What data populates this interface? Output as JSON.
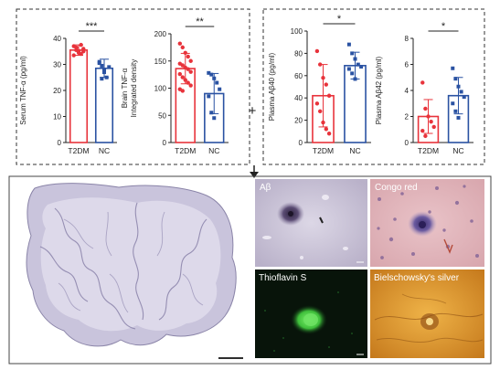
{
  "colors": {
    "t2dm": "#e8333b",
    "nc": "#2a52a2",
    "axis": "#222222",
    "frame": "#333333"
  },
  "charts": [
    {
      "type": "bar",
      "ylabel": "Serum TNF-α (pg/ml)",
      "ylabel_lines": [
        "Serum TNF-α (pg/ml)"
      ],
      "ylim": [
        0,
        40
      ],
      "yticks": [
        "0",
        "10",
        "20",
        "30",
        "40"
      ],
      "categories": [
        "T2DM",
        "NC"
      ],
      "values": [
        35.5,
        28.5
      ],
      "errors": [
        2.0,
        3.5
      ],
      "points": [
        [
          37,
          36.5,
          35.2,
          34,
          36,
          33.5,
          35.5,
          34.5,
          37.5,
          35
        ],
        [
          31,
          29.5,
          27,
          25,
          29,
          30.5,
          24.5,
          28
        ]
      ],
      "significance": "***"
    },
    {
      "type": "bar",
      "ylabel": "Brain TNF-α Integrated density",
      "ylabel_lines": [
        "Brain TNF-α",
        "Integrated density"
      ],
      "ylim": [
        0,
        200
      ],
      "yticks": [
        "0",
        "50",
        "100",
        "150",
        "200"
      ],
      "categories": [
        "T2DM",
        "NC"
      ],
      "values": [
        136,
        90
      ],
      "errors": [
        28,
        37
      ],
      "points": [
        [
          182,
          175,
          165,
          158,
          150,
          145,
          142,
          138,
          135,
          130,
          126,
          120,
          115,
          110,
          105,
          98,
          95
        ],
        [
          128,
          125,
          118,
          110,
          98,
          85,
          55,
          45
        ]
      ],
      "significance": "**"
    },
    {
      "type": "bar",
      "ylabel": "Plasma Aβ40 (pg/ml)",
      "ylabel_lines": [
        "Plasma Aβ40 (pg/ml)"
      ],
      "ylim": [
        0,
        100
      ],
      "yticks": [
        "0",
        "20",
        "40",
        "60",
        "80",
        "100"
      ],
      "categories": [
        "T2DM",
        "NC"
      ],
      "values": [
        42,
        69
      ],
      "errors": [
        28,
        12
      ],
      "points": [
        [
          82,
          70,
          58,
          52,
          42,
          35,
          28,
          18,
          12,
          8
        ],
        [
          88,
          80,
          75,
          70,
          68,
          66,
          62,
          57
        ]
      ],
      "significance": "*"
    },
    {
      "type": "bar",
      "ylabel": "Plasma Aβ42 (pg/ml)",
      "ylabel_lines": [
        "Plasma Aβ42 (pg/ml)"
      ],
      "ylim": [
        0,
        8
      ],
      "yticks": [
        "0",
        "2",
        "4",
        "6",
        "8"
      ],
      "categories": [
        "T2DM",
        "NC"
      ],
      "values": [
        2.0,
        3.6
      ],
      "errors": [
        1.3,
        1.4
      ],
      "points": [
        [
          4.6,
          2.6,
          2.0,
          1.6,
          1.2,
          0.9,
          0.5
        ],
        [
          5.7,
          4.9,
          4.3,
          3.9,
          3.5,
          3.0,
          2.4,
          1.9
        ]
      ],
      "significance": "*"
    }
  ],
  "connector": {
    "plus": "+",
    "arrow": "down-arrow"
  },
  "panels": {
    "abeta": "Aβ",
    "congo": "Congo red",
    "thioflavin": "Thioflavin S",
    "bielschowsky": "Bielschowsky's silver"
  }
}
